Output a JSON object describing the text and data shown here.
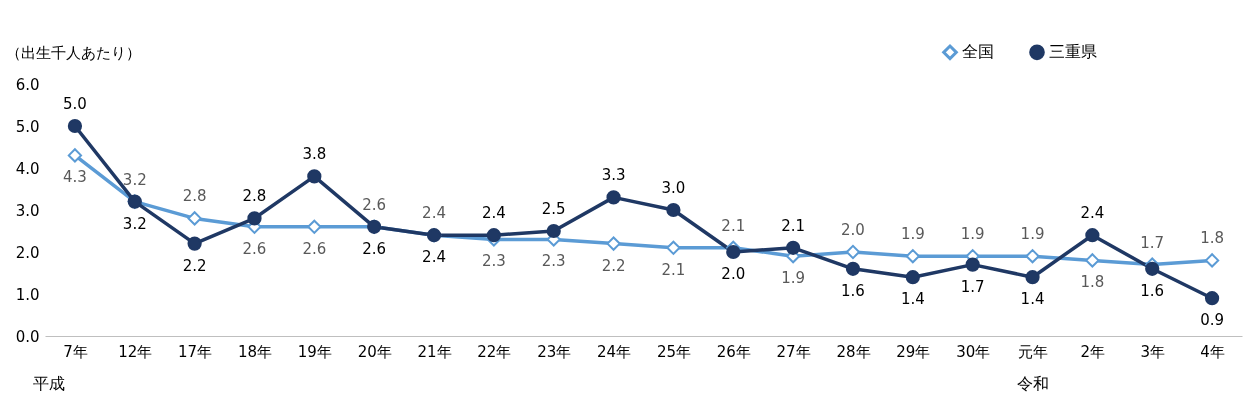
{
  "chart_data": {
    "type": "line",
    "ylabel": "（出生千人あたり）",
    "categories": [
      "7年",
      "12年",
      "17年",
      "18年",
      "19年",
      "20年",
      "21年",
      "22年",
      "23年",
      "24年",
      "25年",
      "26年",
      "27年",
      "28年",
      "29年",
      "30年",
      "元年",
      "2年",
      "3年",
      "4年"
    ],
    "series": [
      {
        "name": "全国",
        "color": "#5b9bd5",
        "marker": "diamond",
        "values": [
          4.3,
          3.2,
          2.8,
          2.6,
          2.6,
          2.6,
          2.4,
          2.3,
          2.3,
          2.2,
          2.1,
          2.1,
          1.9,
          2.0,
          1.9,
          1.9,
          1.9,
          1.8,
          1.7,
          1.8
        ],
        "value_labels": [
          "4.3",
          "3.2",
          "2.8",
          "2.6",
          "2.6",
          "2.6",
          "2.4",
          "2.3",
          "2.3",
          "2.2",
          "2.1",
          "2.1",
          "1.9",
          "2.0",
          "1.9",
          "1.9",
          "1.9",
          "1.8",
          "1.7",
          "1.8"
        ]
      },
      {
        "name": "三重県",
        "color": "#1f3864",
        "marker": "circle",
        "values": [
          5.0,
          3.2,
          2.2,
          2.8,
          3.8,
          2.6,
          2.4,
          2.4,
          2.5,
          3.3,
          3.0,
          2.0,
          2.1,
          1.6,
          1.4,
          1.7,
          1.4,
          2.4,
          1.6,
          0.9
        ],
        "value_labels": [
          "5.0",
          "3.2",
          "2.2",
          "2.8",
          "3.8",
          "2.6",
          "2.4",
          "2.4",
          "2.5",
          "3.3",
          "3.0",
          "2.0",
          "2.1",
          "1.6",
          "1.4",
          "1.7",
          "1.4",
          "2.4",
          "1.6",
          "0.9"
        ]
      }
    ],
    "ylim": [
      0,
      6
    ],
    "yticks": [
      {
        "value": 0,
        "label": "0.0"
      },
      {
        "value": 1,
        "label": "1.0"
      },
      {
        "value": 2,
        "label": "2.0"
      },
      {
        "value": 3,
        "label": "3.0"
      },
      {
        "value": 4,
        "label": "4.0"
      },
      {
        "value": 5,
        "label": "5.0"
      },
      {
        "value": 6,
        "label": "6.0"
      }
    ],
    "grid": false,
    "legend": "top right",
    "annotations": [
      "平成",
      "令和"
    ]
  }
}
